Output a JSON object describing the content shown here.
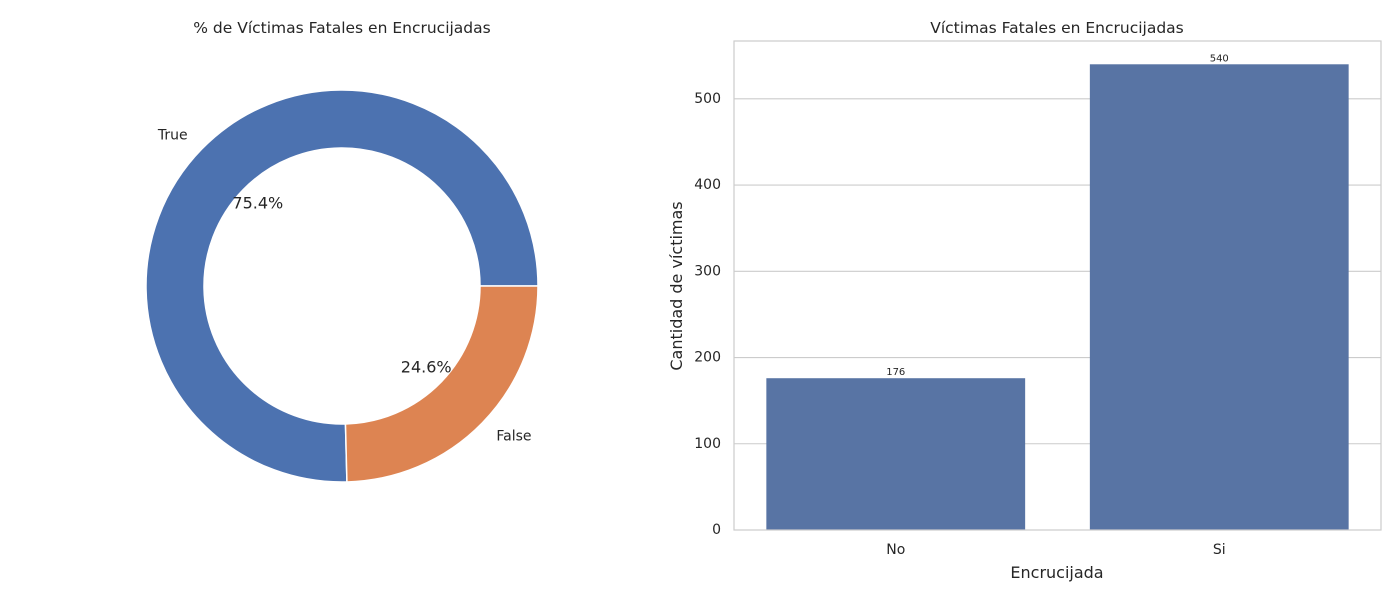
{
  "chart_data": [
    {
      "type": "pie",
      "title": "% de Víctimas Fatales en Encrucijadas",
      "slices": [
        {
          "label": "True",
          "value": 75.4,
          "pct_label": "75.4%",
          "color": "#4c72b0"
        },
        {
          "label": "False",
          "value": 24.6,
          "pct_label": "24.6%",
          "color": "#dd8452"
        }
      ],
      "donut": true,
      "startangle": 0,
      "direction": "counterclockwise"
    },
    {
      "type": "bar",
      "title": "Víctimas Fatales en Encrucijadas",
      "categories": [
        "No",
        "Si"
      ],
      "values": [
        176,
        540
      ],
      "value_labels": [
        "176",
        "540"
      ],
      "xlabel": "Encrucijada",
      "ylabel": "Cantidad de víctimas",
      "ylim": [
        0,
        567
      ],
      "yticks": [
        0,
        100,
        200,
        300,
        400,
        500
      ],
      "ytick_labels": [
        "0",
        "100",
        "200",
        "300",
        "400",
        "500"
      ],
      "grid": "horizontal",
      "bar_color": "#5874a4"
    }
  ]
}
